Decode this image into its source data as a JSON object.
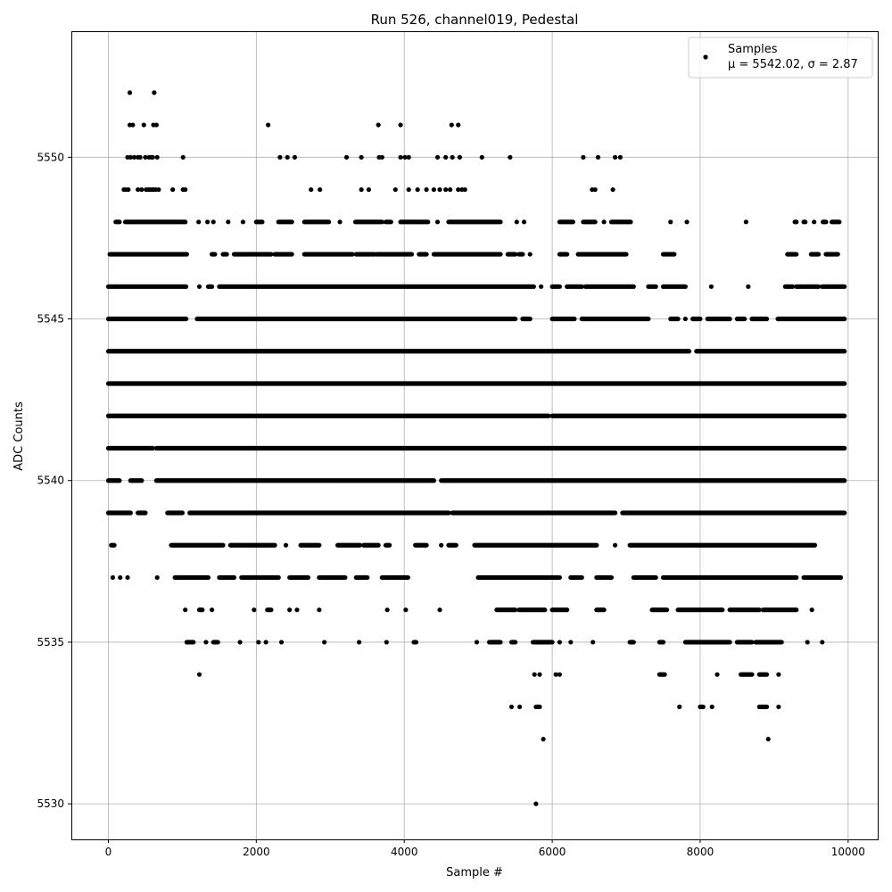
{
  "chart_data": {
    "type": "scatter",
    "title": "Run 526, channel019, Pedestal",
    "xlabel": "Sample #",
    "ylabel": "ADC Counts",
    "xlim": [
      -500,
      10400
    ],
    "ylim": [
      5528.9,
      5553.9
    ],
    "xticks": [
      0,
      2000,
      4000,
      6000,
      8000,
      10000
    ],
    "yticks": [
      5530,
      5535,
      5540,
      5545,
      5550
    ],
    "grid": true,
    "legend": {
      "position": "top-right",
      "label": "Samples",
      "stats": "μ = 5542.02, σ = 2.87"
    },
    "marker_color": "#000000",
    "series": [
      {
        "name": "Samples",
        "density": [
          {
            "y": 5552,
            "x": [
              290,
              620
            ]
          },
          {
            "y": 5551,
            "x": [
              290,
              330,
              480,
              610,
              650,
              2160,
              3650,
              3950,
              4640,
              4730
            ]
          },
          {
            "y": 5550,
            "x": [
              260,
              300,
              350,
              400,
              430,
              500,
              550,
              580,
              600,
              660,
              1010,
              2320,
              2420,
              2520,
              3220,
              3420,
              3660,
              3700,
              3950,
              4010,
              4060,
              4450,
              4560,
              4650,
              4750,
              5050,
              5430,
              6420,
              6620,
              6850,
              6920
            ]
          },
          {
            "y": 5549,
            "x": [
              210,
              240,
              270,
              400,
              450,
              510,
              540,
              560,
              590,
              610,
              640,
              680,
              870,
              1010,
              1040,
              2740,
              2860,
              3420,
              3520,
              3880,
              4060,
              4180,
              4300,
              4400,
              4480,
              4560,
              4620,
              4730,
              4780,
              4820,
              6540,
              6580,
              6820
            ]
          },
          {
            "y": 5548,
            "x": [
              [
                100,
                150
              ],
              [
                230,
                1040
              ],
              1220,
              1340,
              1420,
              1620,
              1820,
              [
                2000,
                2080
              ],
              [
                2300,
                2480
              ],
              [
                2650,
                2980
              ],
              3130,
              [
                3340,
                3700
              ],
              [
                3750,
                3820
              ],
              [
                3950,
                4320
              ],
              4450,
              [
                4600,
                5300
              ],
              5520,
              5620,
              [
                6100,
                6280
              ],
              [
                6420,
                6580
              ],
              6700,
              [
                6800,
                7060
              ],
              7600,
              7820,
              8620,
              [
                9280,
                9300
              ],
              [
                9400,
                9420
              ],
              9540,
              [
                9660,
                9700
              ],
              [
                9780,
                9880
              ]
            ]
          },
          {
            "y": 5547,
            "x": [
              [
                20,
                1060
              ],
              [
                1400,
                1440
              ],
              [
                1550,
                1600
              ],
              [
                1700,
                2200
              ],
              [
                2250,
                2480
              ],
              [
                2650,
                3300
              ],
              [
                3350,
                3600
              ],
              [
                3630,
                4100
              ],
              [
                4200,
                4300
              ],
              [
                4400,
                5300
              ],
              [
                5400,
                5500
              ],
              [
                5550,
                5600
              ],
              5700,
              [
                6100,
                6200
              ],
              [
                6350,
                7000
              ],
              [
                7500,
                7600
              ],
              [
                7620,
                7650
              ],
              [
                9180,
                9300
              ],
              [
                9500,
                9600
              ],
              [
                9700,
                9800
              ],
              [
                9820,
                9860
              ]
            ]
          },
          {
            "y": 5546,
            "x": [
              [
                0,
                1050
              ],
              1230,
              [
                1350,
                1400
              ],
              [
                1500,
                5750
              ],
              5850,
              [
                6000,
                6100
              ],
              [
                6200,
                6400
              ],
              [
                6450,
                7100
              ],
              [
                7300,
                7400
              ],
              [
                7500,
                7800
              ],
              8150,
              8650,
              [
                9150,
                9250
              ],
              [
                9300,
                9400
              ],
              [
                9420,
                9600
              ],
              [
                9650,
                9950
              ]
            ]
          },
          {
            "y": 5545,
            "x": [
              [
                0,
                1050
              ],
              [
                1200,
                5500
              ],
              [
                5600,
                5700
              ],
              [
                6000,
                6300
              ],
              [
                6400,
                7300
              ],
              [
                7600,
                7700
              ],
              7800,
              [
                7900,
                8000
              ],
              [
                8100,
                8400
              ],
              [
                8500,
                8600
              ],
              [
                8700,
                8900
              ],
              [
                9050,
                9950
              ]
            ]
          },
          {
            "y": 5544,
            "x": [
              [
                0,
                7850
              ],
              [
                7950,
                9950
              ]
            ]
          },
          {
            "y": 5543,
            "x": [
              [
                0,
                9950
              ]
            ]
          },
          {
            "y": 5542,
            "x": [
              [
                0,
                5950
              ],
              [
                6000,
                9950
              ]
            ]
          },
          {
            "y": 5541,
            "x": [
              [
                0,
                600
              ],
              [
                650,
                9950
              ]
            ]
          },
          {
            "y": 5540,
            "x": [
              [
                0,
                150
              ],
              [
                300,
                450
              ],
              [
                650,
                4400
              ],
              [
                4500,
                9950
              ]
            ]
          },
          {
            "y": 5539,
            "x": [
              [
                0,
                300
              ],
              [
                400,
                500
              ],
              [
                800,
                1000
              ],
              [
                1100,
                4600
              ],
              [
                4650,
                6850
              ],
              [
                6950,
                9950
              ]
            ]
          },
          {
            "y": 5538,
            "x": [
              [
                40,
                80
              ],
              [
                850,
                1550
              ],
              [
                1650,
                2250
              ],
              2400,
              [
                2600,
                2850
              ],
              [
                3100,
                3400
              ],
              [
                3450,
                3650
              ],
              [
                3750,
                3800
              ],
              [
                4150,
                4300
              ],
              4500,
              [
                4600,
                4700
              ],
              [
                4950,
                6600
              ],
              6850,
              [
                7050,
                9550
              ]
            ]
          },
          {
            "y": 5537,
            "x": [
              60,
              160,
              260,
              660,
              [
                900,
                1350
              ],
              [
                1500,
                1700
              ],
              [
                1800,
                2300
              ],
              [
                2450,
                2700
              ],
              [
                2850,
                3200
              ],
              [
                3350,
                3500
              ],
              [
                3700,
                4050
              ],
              [
                5000,
                6100
              ],
              [
                6250,
                6400
              ],
              [
                6600,
                6800
              ],
              [
                7100,
                7400
              ],
              [
                7500,
                9300
              ],
              [
                9400,
                9900
              ]
            ]
          },
          {
            "y": 5536,
            "x": [
              1040,
              [
                1230,
                1270
              ],
              1400,
              1970,
              [
                2150,
                2200
              ],
              2450,
              2550,
              2850,
              3770,
              4020,
              4480,
              [
                5250,
                5500
              ],
              [
                5550,
                5900
              ],
              [
                6000,
                6200
              ],
              [
                6600,
                6700
              ],
              [
                7350,
                7550
              ],
              [
                7700,
                8300
              ],
              [
                8400,
                8800
              ],
              [
                8850,
                9300
              ],
              9510
            ]
          },
          {
            "y": 5535,
            "x": [
              [
                1060,
                1150
              ],
              1320,
              [
                1420,
                1480
              ],
              1780,
              2030,
              2130,
              2340,
              2920,
              3390,
              3760,
              [
                4130,
                4160
              ],
              4980,
              [
                5150,
                5300
              ],
              [
                5450,
                5500
              ],
              [
                5740,
                6000
              ],
              6100,
              6250,
              6550,
              [
                7050,
                7100
              ],
              [
                7450,
                7500
              ],
              [
                7800,
                8400
              ],
              [
                8500,
                8700
              ],
              [
                8750,
                9100
              ],
              9450,
              9650
            ]
          },
          {
            "y": 5534,
            "x": [
              1230,
              5760,
              5830,
              6050,
              6100,
              [
                7450,
                7520
              ],
              8230,
              [
                8550,
                8700
              ],
              [
                8800,
                8900
              ],
              9060
            ]
          },
          {
            "y": 5533,
            "x": [
              5450,
              5560,
              [
                5780,
                5830
              ],
              7720,
              [
                8000,
                8040
              ],
              8160,
              [
                8800,
                8900
              ],
              9060
            ]
          },
          {
            "y": 5532,
            "x": [
              5880,
              8920
            ]
          },
          {
            "y": 5530,
            "x": [
              5780
            ]
          }
        ]
      }
    ]
  }
}
